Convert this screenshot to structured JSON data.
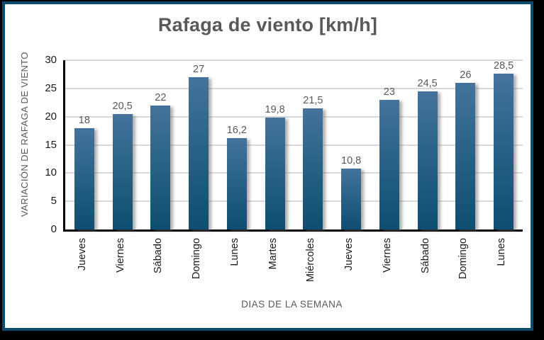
{
  "window": {
    "background_color": "#000000"
  },
  "figure": {
    "background_color": "#ffffff",
    "border_color": "#0d4a6b"
  },
  "chart_data": {
    "type": "bar",
    "title": "Rafaga de viento [km/h]",
    "xlabel": "DIAS DE LA SEMANA",
    "ylabel": "VARIACIÓN DE RAFAGA DE VIENTO",
    "categories": [
      "Jueves",
      "Viernes",
      "Sábado",
      "Domingo",
      "Lunes",
      "Martes",
      "Miércoles",
      "Jueves",
      "Viernes",
      "Sábado",
      "Domingo",
      "Lunes"
    ],
    "values": [
      18,
      20.5,
      22,
      27,
      16.2,
      19.8,
      21.5,
      10.8,
      23,
      24.5,
      26,
      28.5
    ],
    "value_labels": [
      "18",
      "20,5",
      "22",
      "27",
      "16,2",
      "19,8",
      "21,5",
      "10,8",
      "23",
      "24,5",
      "26",
      "28,5"
    ],
    "ylim": [
      0,
      30
    ],
    "yticks": [
      0,
      5,
      10,
      15,
      20,
      25,
      30
    ],
    "grid": true,
    "legend_position": "none",
    "bar_gradient_top": "#45739c",
    "bar_gradient_bottom": "#0e4e70",
    "gridline_color": "#d9d9d9",
    "axis_color": "#000000",
    "title_color": "#595959",
    "value_label_color": "#595959",
    "tick_label_color": "#1a1a1a"
  }
}
